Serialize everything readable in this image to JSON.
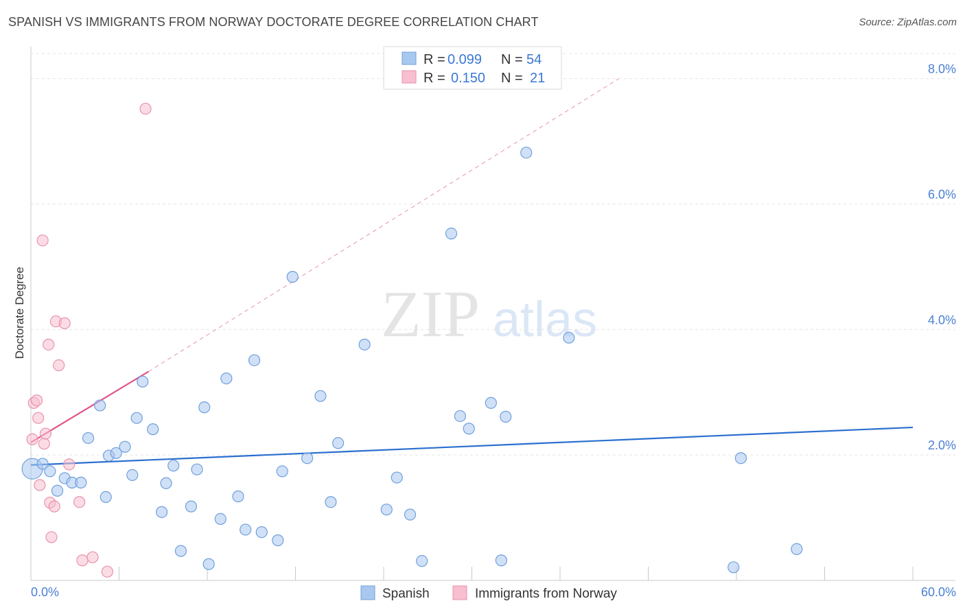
{
  "header": {
    "title": "SPANISH VS IMMIGRANTS FROM NORWAY DOCTORATE DEGREE CORRELATION CHART",
    "source": "Source: ZipAtlas.com"
  },
  "watermark": {
    "zip": "ZIP",
    "atlas": "atlas"
  },
  "chart_data": {
    "type": "scatter",
    "title": "SPANISH VS IMMIGRANTS FROM NORWAY DOCTORATE DEGREE CORRELATION CHART",
    "ylabel": "Doctorate Degree",
    "xlabel": "",
    "xlim": [
      0,
      60
    ],
    "ylim": [
      0,
      8.4
    ],
    "x_tick_labels": [
      "0.0%",
      "60.0%"
    ],
    "y_ticks": [
      2,
      4,
      6,
      8
    ],
    "y_tick_labels": [
      "2.0%",
      "4.0%",
      "6.0%",
      "8.0%"
    ],
    "grid": true,
    "legend_top": [
      {
        "r_label": "R =",
        "r_value": "0.099",
        "n_label": "N =",
        "n_value": "54"
      },
      {
        "r_label": "R =",
        "r_value": "0.150",
        "n_label": "N =",
        "n_value": "21"
      }
    ],
    "series": [
      {
        "name": "Spanish",
        "color": "#a9c8f0",
        "stroke": "#6f9fdc",
        "line_color": "#2a6fcf",
        "trend": {
          "x": [
            0,
            60
          ],
          "y": [
            1.84,
            2.44
          ]
        },
        "points": [
          [
            0.1,
            1.78
          ],
          [
            0.8,
            1.86
          ],
          [
            1.3,
            1.74
          ],
          [
            1.8,
            1.43
          ],
          [
            2.3,
            1.63
          ],
          [
            2.8,
            1.56
          ],
          [
            3.4,
            1.56
          ],
          [
            3.9,
            2.27
          ],
          [
            4.7,
            2.79
          ],
          [
            5.3,
            1.99
          ],
          [
            5.1,
            1.33
          ],
          [
            5.8,
            2.03
          ],
          [
            6.4,
            2.13
          ],
          [
            6.9,
            1.68
          ],
          [
            7.2,
            2.59
          ],
          [
            7.6,
            3.17
          ],
          [
            8.3,
            2.41
          ],
          [
            8.9,
            1.09
          ],
          [
            9.2,
            1.55
          ],
          [
            9.7,
            1.83
          ],
          [
            10.2,
            0.47
          ],
          [
            10.9,
            1.18
          ],
          [
            11.3,
            1.77
          ],
          [
            11.8,
            2.76
          ],
          [
            12.1,
            0.26
          ],
          [
            12.9,
            0.98
          ],
          [
            13.3,
            3.22
          ],
          [
            14.1,
            1.34
          ],
          [
            14.6,
            0.81
          ],
          [
            15.2,
            3.51
          ],
          [
            15.7,
            0.77
          ],
          [
            16.8,
            0.64
          ],
          [
            17.1,
            1.74
          ],
          [
            17.8,
            4.84
          ],
          [
            18.8,
            1.95
          ],
          [
            19.7,
            2.94
          ],
          [
            20.4,
            1.25
          ],
          [
            20.9,
            2.19
          ],
          [
            22.7,
            3.76
          ],
          [
            24.2,
            1.13
          ],
          [
            24.9,
            1.64
          ],
          [
            25.8,
            1.05
          ],
          [
            26.6,
            0.31
          ],
          [
            28.6,
            5.53
          ],
          [
            29.2,
            2.62
          ],
          [
            29.8,
            2.42
          ],
          [
            31.3,
            2.83
          ],
          [
            32.0,
            0.32
          ],
          [
            32.3,
            2.61
          ],
          [
            33.7,
            6.82
          ],
          [
            36.6,
            3.87
          ],
          [
            47.8,
            0.21
          ],
          [
            48.3,
            1.95
          ],
          [
            52.1,
            0.5
          ]
        ]
      },
      {
        "name": "Immigrants from Norway",
        "color": "#f7bfd0",
        "stroke": "#e892ad",
        "line_color": "#e0558a",
        "trend": {
          "x": [
            0,
            8
          ],
          "y": [
            2.2,
            3.33
          ]
        },
        "trend_extended": {
          "x": [
            8,
            40
          ],
          "y": [
            3.33,
            8.0
          ]
        },
        "points": [
          [
            0.1,
            2.25
          ],
          [
            0.2,
            2.83
          ],
          [
            0.4,
            2.87
          ],
          [
            0.5,
            2.59
          ],
          [
            0.6,
            1.52
          ],
          [
            0.8,
            5.42
          ],
          [
            0.9,
            2.18
          ],
          [
            1.0,
            2.34
          ],
          [
            1.2,
            3.76
          ],
          [
            1.3,
            1.24
          ],
          [
            1.4,
            0.69
          ],
          [
            1.6,
            1.18
          ],
          [
            1.7,
            4.13
          ],
          [
            1.9,
            3.43
          ],
          [
            2.3,
            4.1
          ],
          [
            2.6,
            1.85
          ],
          [
            3.3,
            1.25
          ],
          [
            3.5,
            0.32
          ],
          [
            4.2,
            0.37
          ],
          [
            5.2,
            0.14
          ],
          [
            7.8,
            7.52
          ]
        ]
      }
    ]
  }
}
